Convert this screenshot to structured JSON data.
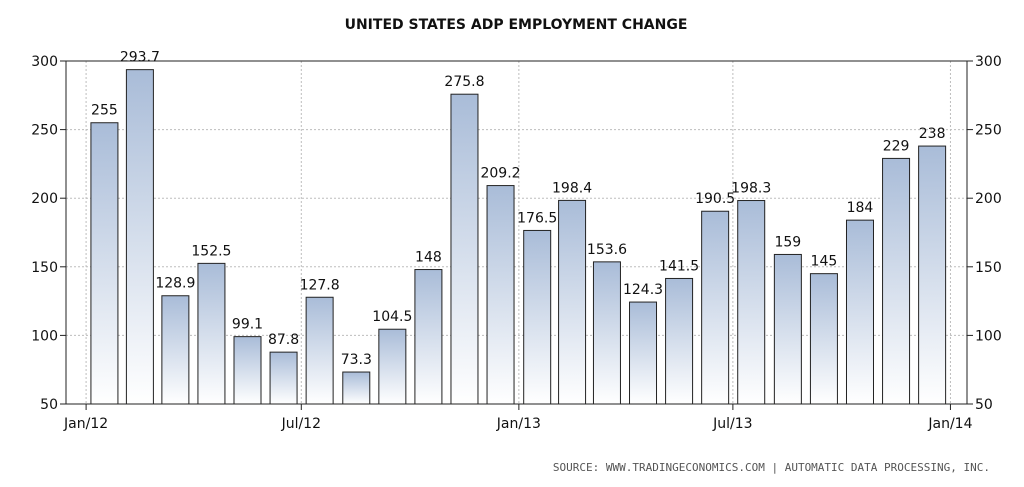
{
  "chart_data": {
    "type": "bar",
    "title": "UNITED STATES ADP EMPLOYMENT CHANGE",
    "source": "SOURCE:  WWW.TRADINGECONOMICS.COM  |  AUTOMATIC DATA PROCESSING, INC.",
    "xlabel": "",
    "ylabel": "",
    "ylim": [
      50,
      300
    ],
    "y_ticks": [
      50,
      100,
      150,
      200,
      250,
      300
    ],
    "y_tick_labels": [
      "50",
      "100",
      "150",
      "200",
      "250",
      "300"
    ],
    "x_range": [
      "2011-12-15",
      "2014-01-15"
    ],
    "x_ticks": [
      {
        "date": "2012-01-01",
        "label": "Jan/12"
      },
      {
        "date": "2012-07-01",
        "label": "Jul/12"
      },
      {
        "date": "2013-01-01",
        "label": "Jan/13"
      },
      {
        "date": "2013-07-01",
        "label": "Jul/13"
      },
      {
        "date": "2014-01-01",
        "label": "Jan/14"
      }
    ],
    "grid": true,
    "categories": [
      "2012-01",
      "2012-02",
      "2012-03",
      "2012-04",
      "2012-05",
      "2012-06",
      "2012-07",
      "2012-08",
      "2012-09",
      "2012-10",
      "2012-11",
      "2012-12",
      "2013-01",
      "2013-02",
      "2013-03",
      "2013-04",
      "2013-05",
      "2013-06",
      "2013-07",
      "2013-08",
      "2013-09",
      "2013-10",
      "2013-11",
      "2013-12"
    ],
    "values": [
      255,
      293.7,
      128.9,
      152.5,
      99.1,
      87.8,
      127.8,
      73.3,
      104.5,
      148,
      275.8,
      209.2,
      176.5,
      198.4,
      153.6,
      124.3,
      141.5,
      190.5,
      198.3,
      159,
      145,
      184,
      229,
      238
    ],
    "value_labels": [
      "255",
      "293.7",
      "128.9",
      "152.5",
      "99.1",
      "87.8",
      "127.8",
      "73.3",
      "104.5",
      "148",
      "275.8",
      "209.2",
      "176.5",
      "198.4",
      "153.6",
      "124.3",
      "141.5",
      "190.5",
      "198.3",
      "159",
      "145",
      "184",
      "229",
      "238"
    ],
    "colors": {
      "bar_top": "#a9bcd8",
      "bar_bottom": "#ffffff",
      "bar_stroke": "#222222",
      "grid": "#bdbdbd",
      "axis": "#222222"
    }
  }
}
